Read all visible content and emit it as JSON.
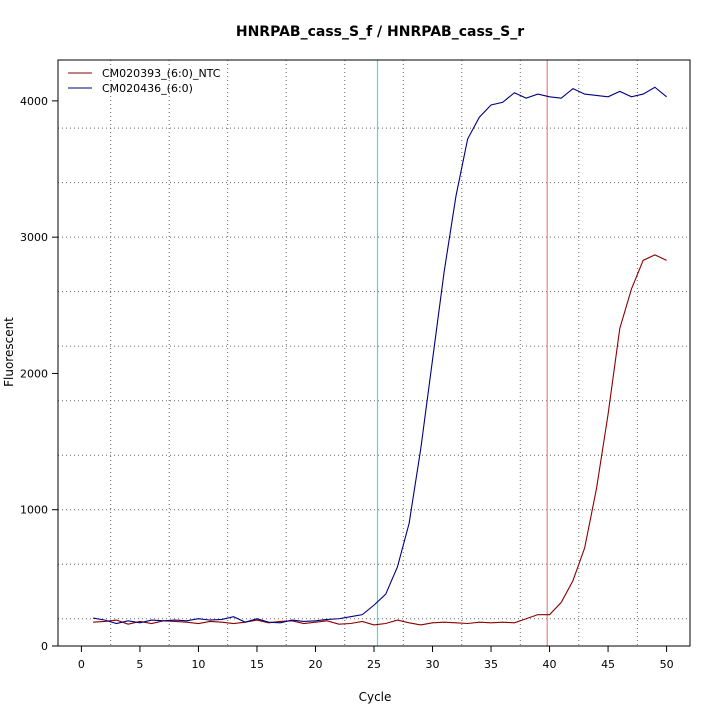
{
  "chart_data": {
    "type": "line",
    "title": "HNRPAB_cass_S_f / HNRPAB_cass_S_r",
    "xlabel": "Cycle",
    "ylabel": "Fluorescent",
    "xlim": [
      -2,
      52
    ],
    "ylim": [
      0,
      4300
    ],
    "x_ticks": [
      0,
      5,
      10,
      15,
      20,
      25,
      30,
      35,
      40,
      45,
      50
    ],
    "y_ticks": [
      0,
      1000,
      2000,
      3000,
      4000
    ],
    "grid_x": [
      2.5,
      7.5,
      12.5,
      17.5,
      22.5,
      27.5,
      32.5,
      37.5,
      42.5,
      47.5
    ],
    "grid_y": [
      200,
      600,
      1000,
      1400,
      1800,
      2200,
      2600,
      3000,
      3400,
      3800
    ],
    "legend_position": "top-left",
    "vlines": [
      {
        "x": 25.3,
        "color": "#40e0e0"
      },
      {
        "x": 39.8,
        "color": "#f08080"
      }
    ],
    "series": [
      {
        "name": "CM020393_(6:0)_NTC",
        "color": "#8b0000",
        "x": [
          1,
          2,
          3,
          4,
          5,
          6,
          7,
          8,
          9,
          10,
          11,
          12,
          13,
          14,
          15,
          16,
          17,
          18,
          19,
          20,
          21,
          22,
          23,
          24,
          25,
          26,
          27,
          28,
          29,
          30,
          31,
          32,
          33,
          34,
          35,
          36,
          37,
          38,
          39,
          40,
          41,
          42,
          43,
          44,
          45,
          46,
          47,
          48,
          49,
          50
        ],
        "y": [
          175,
          180,
          190,
          160,
          180,
          165,
          185,
          180,
          175,
          165,
          180,
          175,
          165,
          175,
          190,
          170,
          180,
          185,
          165,
          175,
          185,
          160,
          165,
          180,
          155,
          165,
          190,
          170,
          155,
          170,
          175,
          170,
          165,
          175,
          170,
          175,
          170,
          200,
          230,
          230,
          320,
          480,
          720,
          1150,
          1700,
          2330,
          2620,
          2830,
          2870,
          2830
        ]
      },
      {
        "name": "CM020436_(6:0)",
        "color": "#000080",
        "x": [
          1,
          2,
          3,
          4,
          5,
          6,
          7,
          8,
          9,
          10,
          11,
          12,
          13,
          14,
          15,
          16,
          17,
          18,
          19,
          20,
          21,
          22,
          23,
          24,
          25,
          26,
          27,
          28,
          29,
          30,
          31,
          32,
          33,
          34,
          35,
          36,
          37,
          38,
          39,
          40,
          41,
          42,
          43,
          44,
          45,
          46,
          47,
          48,
          49,
          50
        ],
        "y": [
          205,
          190,
          165,
          185,
          170,
          190,
          185,
          190,
          185,
          200,
          190,
          195,
          215,
          175,
          200,
          175,
          170,
          190,
          180,
          185,
          195,
          200,
          215,
          230,
          300,
          380,
          580,
          900,
          1450,
          2100,
          2750,
          3300,
          3720,
          3880,
          3970,
          3990,
          4060,
          4020,
          4050,
          4030,
          4020,
          4090,
          4050,
          4040,
          4030,
          4070,
          4030,
          4050,
          4100,
          4030
        ]
      }
    ]
  }
}
